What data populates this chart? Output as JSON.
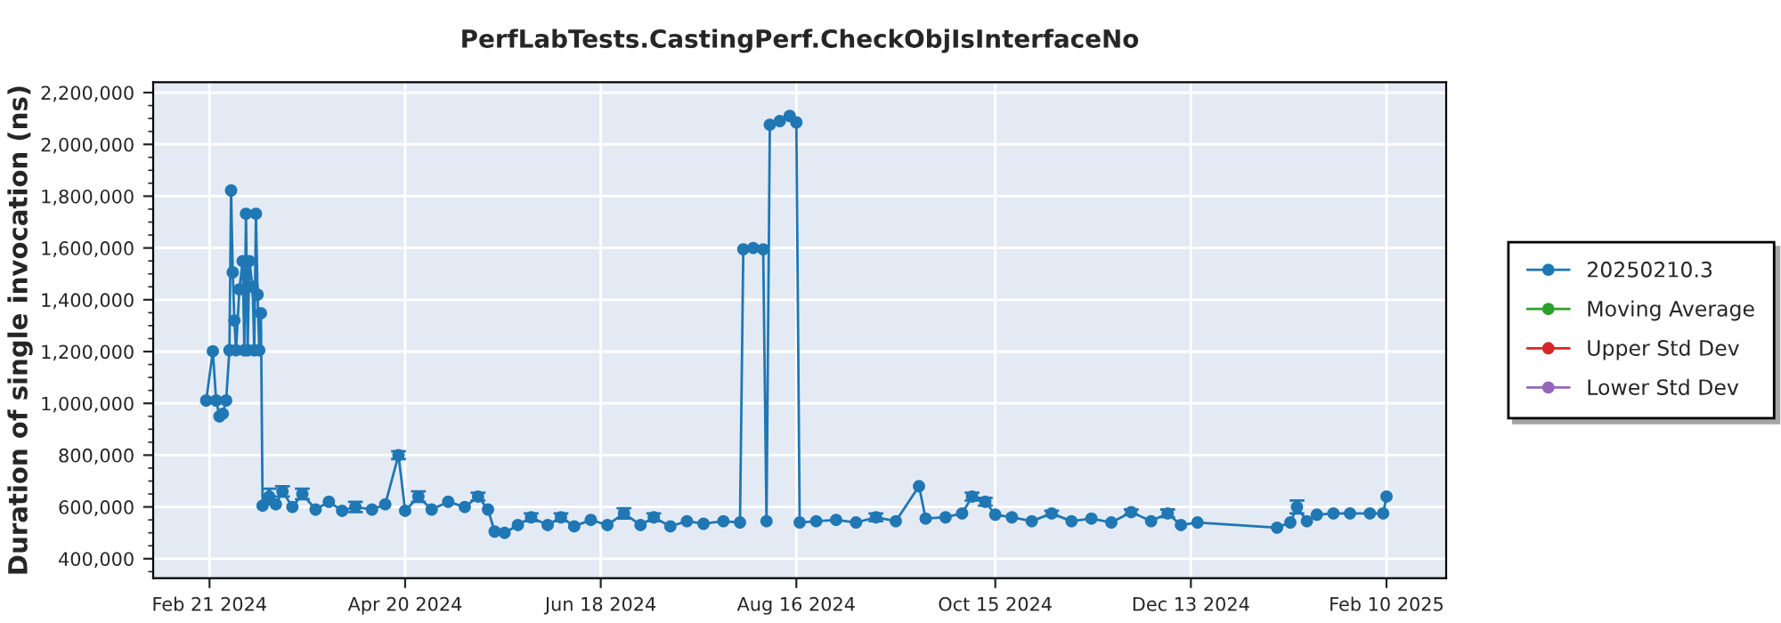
{
  "chart_data": {
    "type": "line",
    "title": "PerfLabTests.CastingPerf.CheckObjIsInterfaceNo",
    "ylabel": "Duration of single invocation (ns)",
    "x": [
      "2024-02-20",
      "2024-02-22",
      "2024-02-23",
      "2024-02-24",
      "2024-02-25",
      "2024-02-26",
      "2024-02-27",
      "2024-02-27T12:00",
      "2024-02-28",
      "2024-02-28T12:00",
      "2024-02-29",
      "2024-03-01",
      "2024-03-02",
      "2024-03-02T12:00",
      "2024-03-03",
      "2024-03-03T12:00",
      "2024-03-04",
      "2024-03-05",
      "2024-03-05T12:00",
      "2024-03-06",
      "2024-03-06T12:00",
      "2024-03-07",
      "2024-03-07T12:00",
      "2024-03-08",
      "2024-03-10",
      "2024-03-12",
      "2024-03-14",
      "2024-03-17",
      "2024-03-20",
      "2024-03-24",
      "2024-03-28",
      "2024-04-01",
      "2024-04-05",
      "2024-04-10",
      "2024-04-14",
      "2024-04-18",
      "2024-04-20",
      "2024-04-24",
      "2024-04-28",
      "2024-05-03",
      "2024-05-08",
      "2024-05-12",
      "2024-05-15",
      "2024-05-17",
      "2024-05-20",
      "2024-05-24",
      "2024-05-28",
      "2024-06-02",
      "2024-06-06",
      "2024-06-10",
      "2024-06-15",
      "2024-06-20",
      "2024-06-25",
      "2024-06-30",
      "2024-07-04",
      "2024-07-09",
      "2024-07-14",
      "2024-07-19",
      "2024-07-25",
      "2024-07-30",
      "2024-07-31",
      "2024-08-03",
      "2024-08-06",
      "2024-08-07",
      "2024-08-08",
      "2024-08-11",
      "2024-08-14",
      "2024-08-16",
      "2024-08-17",
      "2024-08-22",
      "2024-08-28",
      "2024-09-03",
      "2024-09-09",
      "2024-09-15",
      "2024-09-22",
      "2024-09-24",
      "2024-09-30",
      "2024-10-05",
      "2024-10-08",
      "2024-10-12",
      "2024-10-15",
      "2024-10-20",
      "2024-10-26",
      "2024-11-01",
      "2024-11-07",
      "2024-11-13",
      "2024-11-19",
      "2024-11-25",
      "2024-12-01",
      "2024-12-06",
      "2024-12-10",
      "2024-12-15",
      "2025-01-08",
      "2025-01-12",
      "2025-01-14",
      "2025-01-17",
      "2025-01-20",
      "2025-01-25",
      "2025-01-30",
      "2025-02-05",
      "2025-02-09",
      "2025-02-10"
    ],
    "series": [
      {
        "name": "20250210.3",
        "color": "#1f77b4",
        "values": [
          1011000,
          1201000,
          1011000,
          950000,
          960000,
          1011000,
          1205000,
          1822000,
          1506000,
          1320000,
          1205000,
          1440000,
          1549000,
          1205000,
          1732000,
          1205000,
          1549000,
          1450000,
          1205000,
          1732000,
          1420000,
          1205000,
          1348000,
          605000,
          640000,
          610000,
          660000,
          600000,
          650000,
          590000,
          620000,
          585000,
          600000,
          590000,
          610000,
          800000,
          585000,
          640000,
          590000,
          620000,
          600000,
          640000,
          590000,
          505000,
          500000,
          530000,
          560000,
          530000,
          560000,
          525000,
          550000,
          530000,
          575000,
          530000,
          560000,
          525000,
          545000,
          535000,
          545000,
          540000,
          1595000,
          1600000,
          1595000,
          545000,
          2076000,
          2090000,
          2110000,
          2085000,
          540000,
          545000,
          550000,
          540000,
          560000,
          545000,
          680000,
          555000,
          560000,
          575000,
          640000,
          620000,
          570000,
          560000,
          545000,
          575000,
          545000,
          555000,
          540000,
          580000,
          545000,
          575000,
          530000,
          540000,
          520000,
          540000,
          600000,
          545000,
          570000,
          575000,
          575000,
          575000,
          575000,
          640000
        ],
        "errors": [
          null,
          null,
          null,
          null,
          null,
          null,
          null,
          null,
          null,
          null,
          null,
          null,
          null,
          null,
          null,
          null,
          null,
          null,
          null,
          null,
          null,
          null,
          null,
          null,
          30000,
          null,
          20000,
          null,
          20000,
          null,
          null,
          null,
          20000,
          null,
          null,
          15000,
          null,
          20000,
          null,
          null,
          null,
          15000,
          null,
          null,
          null,
          null,
          15000,
          null,
          15000,
          null,
          null,
          null,
          20000,
          null,
          15000,
          null,
          null,
          null,
          null,
          null,
          null,
          null,
          null,
          null,
          null,
          null,
          null,
          null,
          null,
          null,
          null,
          null,
          15000,
          null,
          null,
          null,
          null,
          null,
          15000,
          15000,
          null,
          null,
          null,
          10000,
          null,
          null,
          null,
          10000,
          null,
          15000,
          null,
          null,
          null,
          null,
          25000,
          null,
          null,
          null,
          null,
          null,
          null,
          null
        ]
      },
      {
        "name": "Moving Average",
        "color": "#2ca02c",
        "values": [
          null,
          null,
          null,
          null,
          null,
          null,
          null,
          null,
          null,
          null,
          null,
          null,
          null,
          null,
          null,
          null,
          null,
          null,
          null,
          null,
          null,
          null,
          null,
          null,
          null,
          null,
          null,
          null,
          null,
          null,
          null,
          null,
          null,
          null,
          null,
          null,
          null,
          null,
          null,
          null,
          null,
          null,
          null,
          null,
          null,
          null,
          null,
          null,
          null,
          null,
          null,
          null,
          null,
          null,
          null,
          null,
          null,
          null,
          null,
          null,
          null,
          null,
          null,
          null,
          null,
          null,
          null,
          null,
          null,
          null,
          null,
          null,
          null,
          null,
          null,
          null,
          null,
          null,
          null,
          null,
          null,
          null,
          null,
          null,
          null,
          null,
          null,
          null,
          null,
          null,
          null,
          null,
          null,
          null,
          null,
          null,
          null,
          null,
          null,
          null,
          null,
          null
        ]
      },
      {
        "name": "Upper Std Dev",
        "color": "#d62728",
        "values": [
          null,
          null,
          null,
          null,
          null,
          null,
          null,
          null,
          null,
          null,
          null,
          null,
          null,
          null,
          null,
          null,
          null,
          null,
          null,
          null,
          null,
          null,
          null,
          null,
          null,
          null,
          null,
          null,
          null,
          null,
          null,
          null,
          null,
          null,
          null,
          null,
          null,
          null,
          null,
          null,
          null,
          null,
          null,
          null,
          null,
          null,
          null,
          null,
          null,
          null,
          null,
          null,
          null,
          null,
          null,
          null,
          null,
          null,
          null,
          null,
          null,
          null,
          null,
          null,
          null,
          null,
          null,
          null,
          null,
          null,
          null,
          null,
          null,
          null,
          null,
          null,
          null,
          null,
          null,
          null,
          null,
          null,
          null,
          null,
          null,
          null,
          null,
          null,
          null,
          null,
          null,
          null,
          null,
          null,
          null,
          null,
          null,
          null,
          null,
          null,
          null,
          null
        ]
      },
      {
        "name": "Lower Std Dev",
        "color": "#9467bd",
        "values": [
          null,
          null,
          null,
          null,
          null,
          null,
          null,
          null,
          null,
          null,
          null,
          null,
          null,
          null,
          null,
          null,
          null,
          null,
          null,
          null,
          null,
          null,
          null,
          null,
          null,
          null,
          null,
          null,
          null,
          null,
          null,
          null,
          null,
          null,
          null,
          null,
          null,
          null,
          null,
          null,
          null,
          null,
          null,
          null,
          null,
          null,
          null,
          null,
          null,
          null,
          null,
          null,
          null,
          null,
          null,
          null,
          null,
          null,
          null,
          null,
          null,
          null,
          null,
          null,
          null,
          null,
          null,
          null,
          null,
          null,
          null,
          null,
          null,
          null,
          null,
          null,
          null,
          null,
          null,
          null,
          null,
          null,
          null,
          null,
          null,
          null,
          null,
          null,
          null,
          null,
          null,
          null,
          null,
          null,
          null,
          null,
          null,
          null,
          null,
          null,
          null,
          null
        ]
      }
    ],
    "xlim": [
      "2024-02-04",
      "2025-02-28"
    ],
    "xticks": [
      {
        "value": "2024-02-21",
        "label": "Feb 21 2024"
      },
      {
        "value": "2024-04-20",
        "label": "Apr 20 2024"
      },
      {
        "value": "2024-06-18",
        "label": "Jun 18 2024"
      },
      {
        "value": "2024-08-16",
        "label": "Aug 16 2024"
      },
      {
        "value": "2024-10-15",
        "label": "Oct 15 2024"
      },
      {
        "value": "2024-12-13",
        "label": "Dec 13 2024"
      },
      {
        "value": "2025-02-10",
        "label": "Feb 10 2025"
      }
    ],
    "ylim": [
      325000,
      2240000
    ],
    "yticks": [
      {
        "value": 400000,
        "label": "400,000"
      },
      {
        "value": 600000,
        "label": "600,000"
      },
      {
        "value": 800000,
        "label": "800,000"
      },
      {
        "value": 1000000,
        "label": "1,000,000"
      },
      {
        "value": 1200000,
        "label": "1,200,000"
      },
      {
        "value": 1400000,
        "label": "1,400,000"
      },
      {
        "value": 1600000,
        "label": "1,600,000"
      },
      {
        "value": 1800000,
        "label": "1,800,000"
      },
      {
        "value": 2000000,
        "label": "2,000,000"
      },
      {
        "value": 2200000,
        "label": "2,200,000"
      }
    ],
    "grid": true,
    "legend": "right",
    "marker": "circle",
    "line_style": "solid"
  }
}
